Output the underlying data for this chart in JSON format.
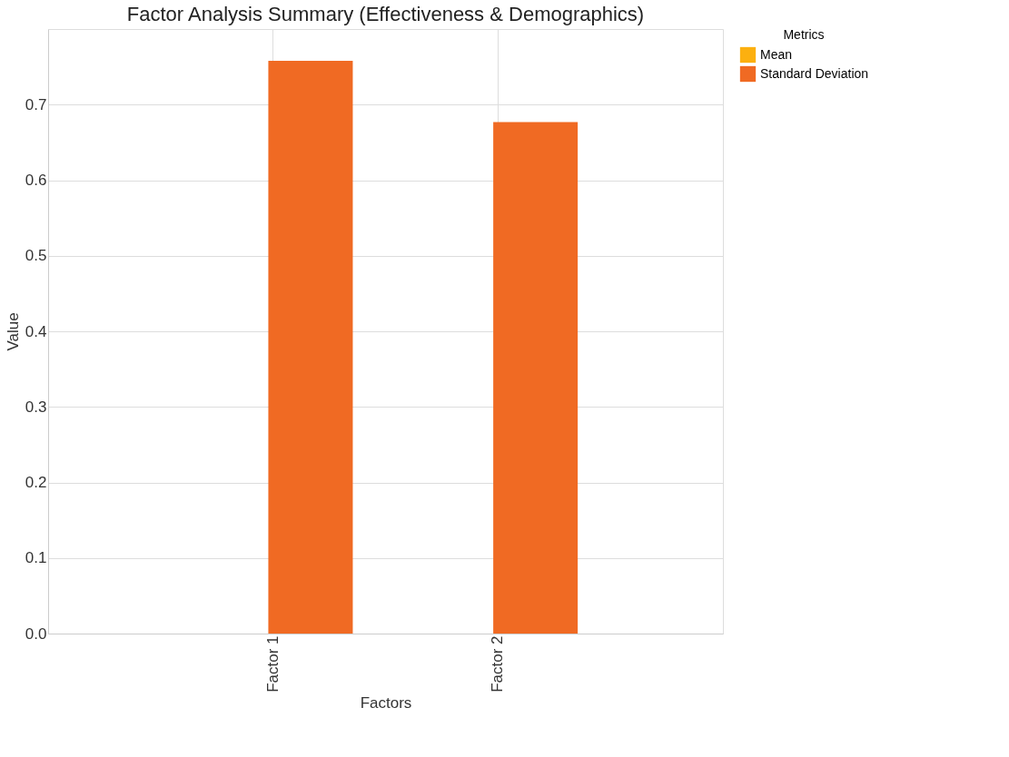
{
  "chart_data": {
    "type": "bar",
    "title": "Factor Analysis Summary (Effectiveness & Demographics)",
    "xlabel": "Factors",
    "ylabel": "Value",
    "legend_title": "Metrics",
    "categories": [
      "Factor 1",
      "Factor 2"
    ],
    "series": [
      {
        "name": "Mean",
        "color": "#fcb00f",
        "values": [
          0,
          0
        ]
      },
      {
        "name": "Standard Deviation",
        "color": "#f06a23",
        "values": [
          0.758,
          0.677
        ]
      }
    ],
    "ylim": [
      0,
      0.8
    ],
    "yticks": [
      {
        "value": 0,
        "label": "0.0"
      },
      {
        "value": 0.1,
        "label": "0.1"
      },
      {
        "value": 0.2,
        "label": "0.2"
      },
      {
        "value": 0.3,
        "label": "0.3"
      },
      {
        "value": 0.4,
        "label": "0.4"
      },
      {
        "value": 0.5,
        "label": "0.5"
      },
      {
        "value": 0.6,
        "label": "0.6"
      },
      {
        "value": 0.7,
        "label": "0.7"
      }
    ],
    "grid": true,
    "legend": "top right"
  }
}
